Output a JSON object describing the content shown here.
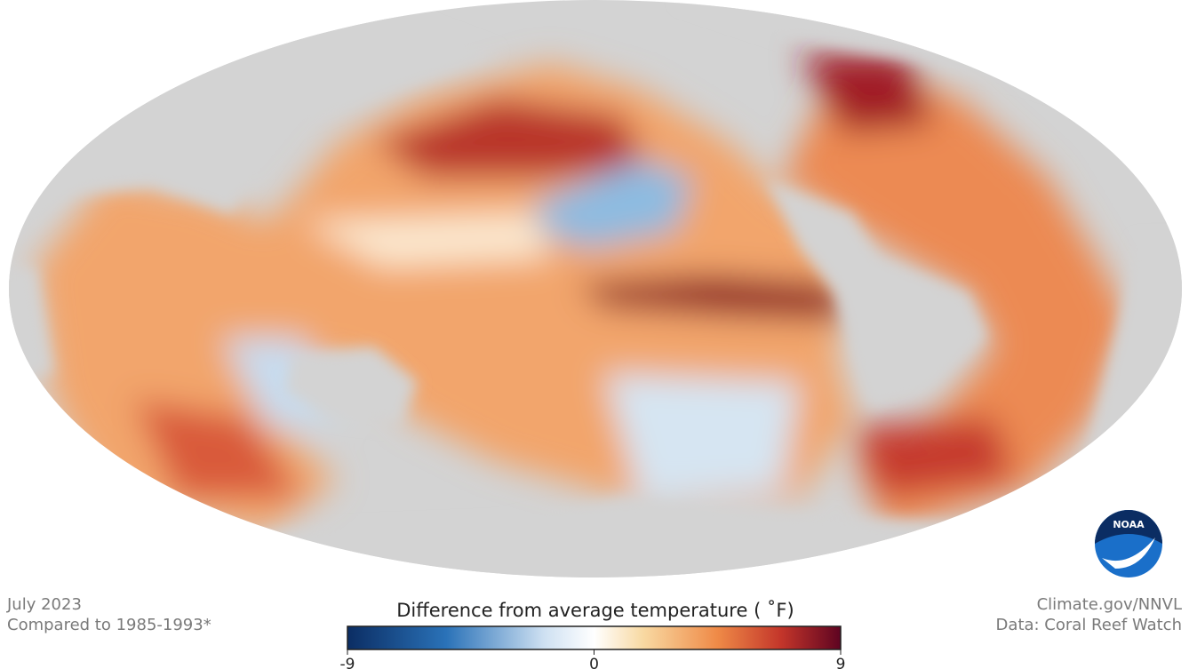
{
  "map": {
    "date": "July 2023",
    "baseline": "Compared to 1985-1993*",
    "credit": "Climate.gov/NNVL",
    "source": "Data: Coral Reef Watch",
    "logo": "NOAA"
  },
  "legend": {
    "title": "Difference from average temperature ( ˚F)",
    "min": -9,
    "max": 9,
    "ticks": [
      -9,
      0,
      9
    ]
  }
}
